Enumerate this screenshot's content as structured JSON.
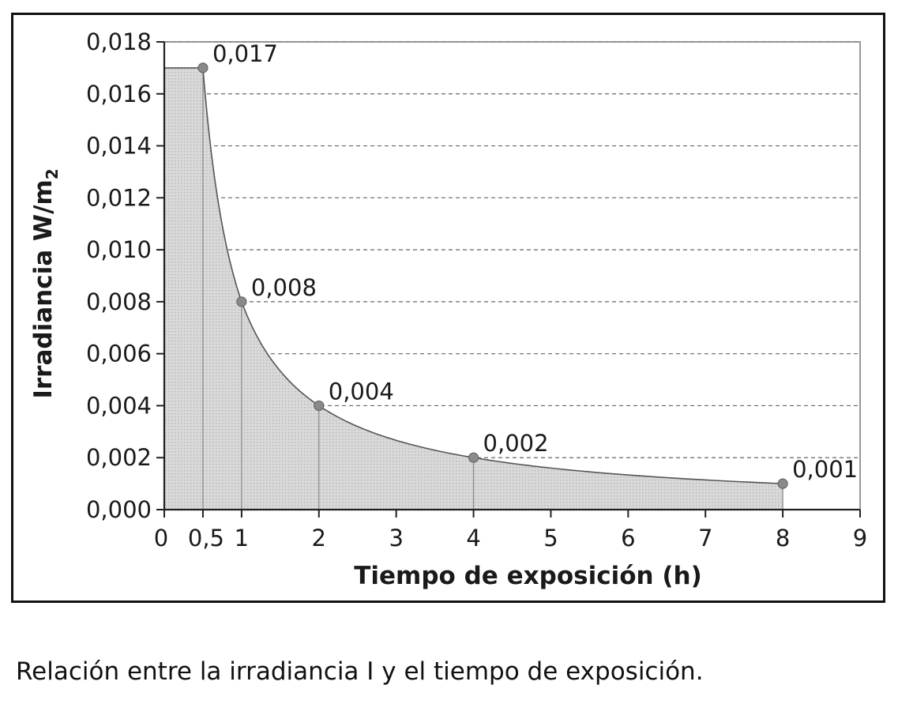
{
  "chart_data": {
    "type": "area",
    "xlabel": "Tiempo de exposición (h)",
    "ylabel": "Irradiancia W/m",
    "ylabel_subscript": "2",
    "xlim": [
      0,
      9
    ],
    "ylim": [
      0,
      0.018
    ],
    "x_ticks": [
      {
        "value": 0,
        "label": "0"
      },
      {
        "value": 0.5,
        "label": "0,5"
      },
      {
        "value": 1,
        "label": "1"
      },
      {
        "value": 2,
        "label": "2"
      },
      {
        "value": 3,
        "label": "3"
      },
      {
        "value": 4,
        "label": "4"
      },
      {
        "value": 5,
        "label": "5"
      },
      {
        "value": 6,
        "label": "6"
      },
      {
        "value": 7,
        "label": "7"
      },
      {
        "value": 8,
        "label": "8"
      },
      {
        "value": 9,
        "label": "9"
      }
    ],
    "y_ticks": [
      {
        "value": 0,
        "label": "0,000"
      },
      {
        "value": 0.002,
        "label": "0,002"
      },
      {
        "value": 0.004,
        "label": "0,004"
      },
      {
        "value": 0.006,
        "label": "0,006"
      },
      {
        "value": 0.008,
        "label": "0,008"
      },
      {
        "value": 0.01,
        "label": "0,010"
      },
      {
        "value": 0.012,
        "label": "0,012"
      },
      {
        "value": 0.014,
        "label": "0,014"
      },
      {
        "value": 0.016,
        "label": "0,016"
      },
      {
        "value": 0.018,
        "label": "0,018"
      }
    ],
    "grid": "horizontal dashed",
    "flat_start": {
      "x": 0,
      "y": 0.017
    },
    "points": [
      {
        "x": 0.5,
        "y": 0.017,
        "label": "0,017"
      },
      {
        "x": 1,
        "y": 0.008,
        "label": "0,008"
      },
      {
        "x": 2,
        "y": 0.004,
        "label": "0,004"
      },
      {
        "x": 4,
        "y": 0.002,
        "label": "0,002"
      },
      {
        "x": 8,
        "y": 0.001,
        "label": "0,001"
      }
    ],
    "colors": {
      "fill": "#d9d9d9",
      "line": "#555555",
      "marker": "#8a8a8a",
      "drop_line": "#888888",
      "grid": "#666666",
      "plot_border": "#777777"
    }
  },
  "caption": "Relación entre la irradiancia I y el tiempo de exposición."
}
